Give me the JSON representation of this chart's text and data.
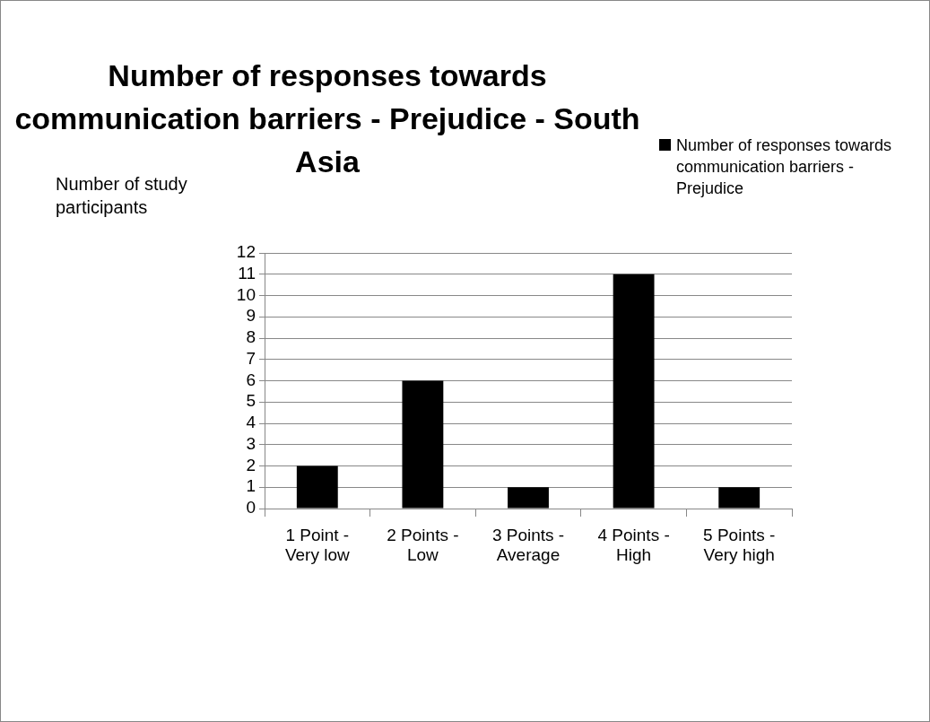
{
  "chart_data": {
    "type": "bar",
    "title": "Number of responses towards communication barriers - Prejudice - South Asia",
    "ylabel": "Number of study participants",
    "categories": [
      "1 Point - Very low",
      "2 Points - Low",
      "3 Points - Average",
      "4 Points - High",
      "5 Points - Very high"
    ],
    "series": [
      {
        "name": "Number of responses towards communication barriers - Prejudice",
        "color": "#000000",
        "values": [
          2,
          6,
          1,
          11,
          1
        ]
      }
    ],
    "ylim": [
      0,
      12
    ],
    "yticks": [
      0,
      1,
      2,
      3,
      4,
      5,
      6,
      7,
      8,
      9,
      10,
      11,
      12
    ],
    "grid": "y",
    "legend": "top right"
  }
}
